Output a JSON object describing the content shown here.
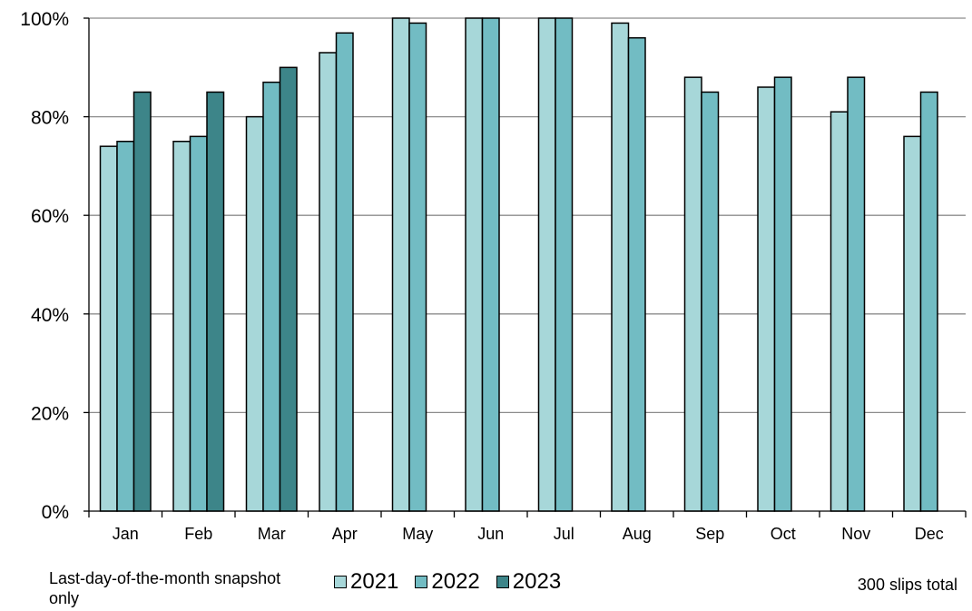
{
  "chart_data": {
    "type": "bar",
    "title": "",
    "xlabel": "",
    "ylabel": "",
    "categories": [
      "Jan",
      "Feb",
      "Mar",
      "Apr",
      "May",
      "Jun",
      "Jul",
      "Aug",
      "Sep",
      "Oct",
      "Nov",
      "Dec"
    ],
    "series": [
      {
        "name": "2021",
        "color": "#a7d7d9",
        "values": [
          74,
          75,
          80,
          93,
          100,
          100,
          100,
          99,
          88,
          86,
          81,
          76
        ]
      },
      {
        "name": "2022",
        "color": "#72bcc3",
        "values": [
          75,
          76,
          87,
          97,
          99,
          100,
          100,
          96,
          85,
          88,
          88,
          85
        ]
      },
      {
        "name": "2023",
        "color": "#3d8589",
        "values": [
          85,
          85,
          90,
          null,
          null,
          null,
          null,
          null,
          null,
          null,
          null,
          null
        ]
      }
    ],
    "ylim": [
      0,
      100
    ],
    "yticks": [
      0,
      20,
      40,
      60,
      80,
      100
    ],
    "ytick_suffix": "%",
    "grid": true,
    "legend": "bottom-center"
  },
  "notes": {
    "left": "Last-day-of-the-month snapshot only",
    "right": "300 slips total"
  }
}
